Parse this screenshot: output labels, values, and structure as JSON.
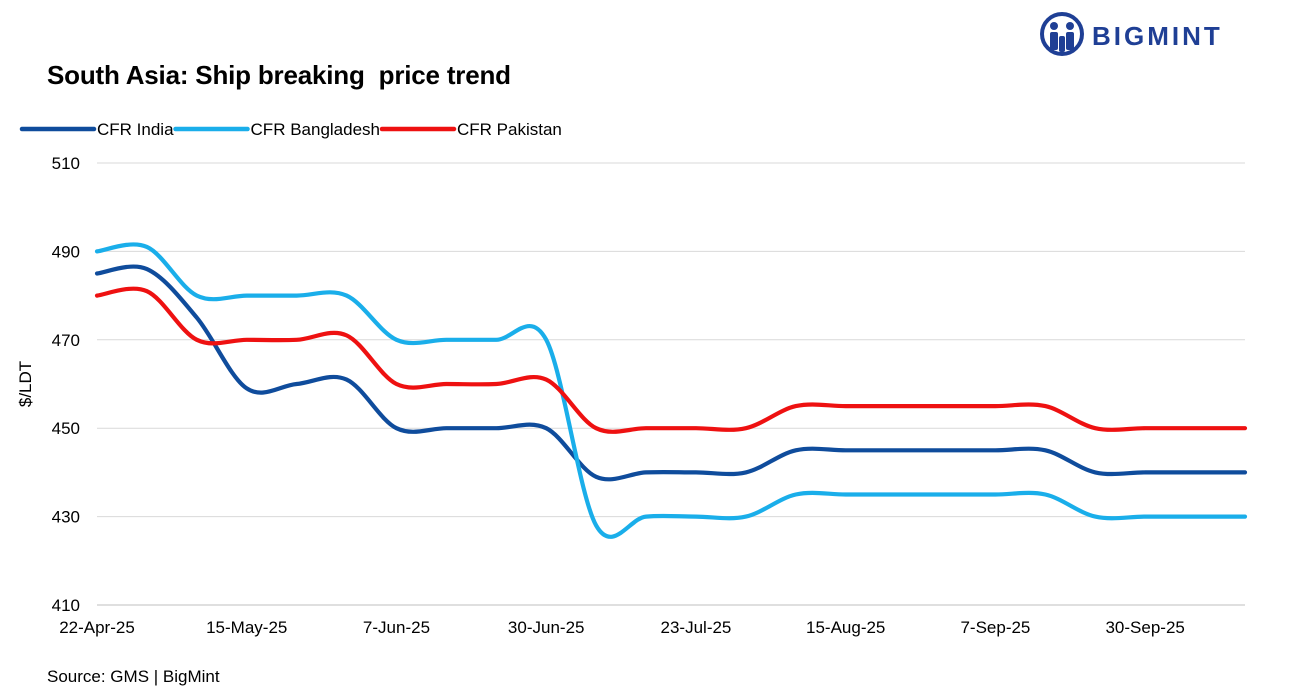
{
  "brand": {
    "name": "BIGMINT",
    "color": "#1f3f95"
  },
  "source": "Source: GMS | BigMint",
  "chart_data": {
    "type": "line",
    "title": "South Asia: Ship breaking  price trend",
    "xlabel": "",
    "ylabel": "$/LDT",
    "ylim": [
      410,
      510
    ],
    "yticks": [
      410,
      430,
      450,
      470,
      490,
      510
    ],
    "x_tick_labels": [
      "22-Apr-25",
      "15-May-25",
      "7-Jun-25",
      "30-Jun-25",
      "23-Jul-25",
      "15-Aug-25",
      "7-Sep-25",
      "30-Sep-25"
    ],
    "x_tick_positions": [
      0,
      3,
      6,
      9,
      12,
      15,
      18,
      21
    ],
    "grid": "horizontal",
    "legend": "top-left",
    "smooth": true,
    "series": [
      {
        "name": "CFR India",
        "color": "#0f4c9c",
        "values": [
          485,
          486,
          475,
          459,
          460,
          461,
          450,
          450,
          450,
          450,
          439,
          440,
          440,
          440,
          445,
          445,
          445,
          445,
          445,
          445,
          440,
          440,
          440,
          440
        ]
      },
      {
        "name": "CFR Bangladesh",
        "color": "#1aaeea",
        "values": [
          490,
          491,
          480,
          480,
          480,
          480,
          470,
          470,
          470,
          470,
          428,
          430,
          430,
          430,
          435,
          435,
          435,
          435,
          435,
          435,
          430,
          430,
          430,
          430
        ]
      },
      {
        "name": "CFR Pakistan",
        "color": "#ee1111",
        "values": [
          480,
          481,
          470,
          470,
          470,
          471,
          460,
          460,
          460,
          461,
          450,
          450,
          450,
          450,
          455,
          455,
          455,
          455,
          455,
          455,
          450,
          450,
          450,
          450
        ]
      }
    ]
  }
}
